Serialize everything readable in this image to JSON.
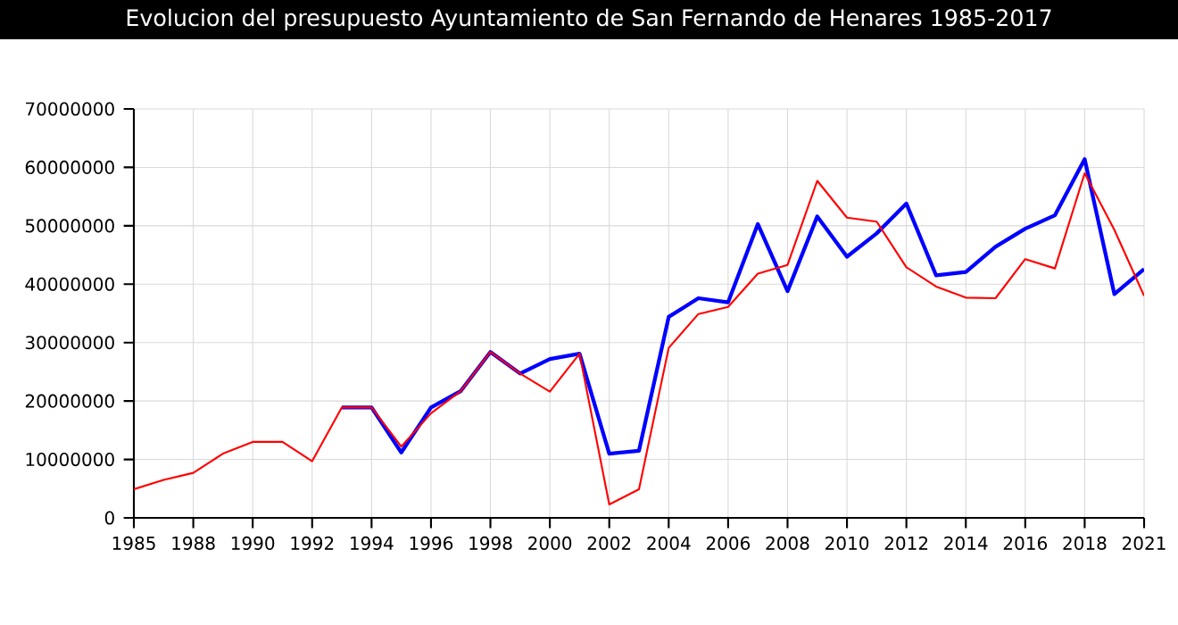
{
  "chart_data": {
    "type": "line",
    "title": "Evolucion del presupuesto Ayuntamiento de San Fernando de Henares 1985-2017",
    "categories": [
      "1985",
      null,
      "1988",
      null,
      "1990",
      null,
      "1992",
      null,
      "1994",
      null,
      "1996",
      null,
      "1998",
      null,
      "2000",
      null,
      "2002",
      null,
      "2004",
      null,
      "2006",
      null,
      "2008",
      null,
      "2010",
      null,
      "2012",
      null,
      "2014",
      null,
      "2016",
      null,
      "2018",
      null,
      "2021"
    ],
    "series": [
      {
        "color": "#0000ff",
        "values": [
          null,
          null,
          null,
          null,
          null,
          null,
          null,
          18900000,
          18900000,
          11200000,
          18900000,
          21700000,
          28400000,
          24700000,
          27200000,
          28100000,
          11000000,
          11500000,
          34400000,
          37600000,
          36900000,
          50300000,
          38800000,
          51600000,
          44700000,
          48700000,
          53800000,
          41500000,
          42100000,
          46400000,
          49500000,
          51800000,
          61400000,
          38300000,
          42600000
        ]
      },
      {
        "color": "#ff0000",
        "values": [
          4900000,
          6500000,
          7700000,
          11000000,
          13000000,
          13000000,
          9700000,
          18900000,
          18900000,
          12200000,
          17900000,
          21700000,
          28400000,
          24700000,
          21600000,
          28100000,
          2300000,
          4900000,
          29100000,
          34900000,
          36100000,
          41800000,
          43300000,
          57700000,
          51400000,
          50700000,
          42900000,
          39600000,
          37700000,
          37600000,
          44300000,
          42700000,
          59000000,
          49300000,
          38000000
        ]
      }
    ],
    "ylim": [
      0,
      70000000
    ],
    "yticks": [
      0,
      10000000,
      20000000,
      30000000,
      40000000,
      50000000,
      60000000,
      70000000
    ],
    "grid": true,
    "marker": "none",
    "line_style": "solid"
  }
}
